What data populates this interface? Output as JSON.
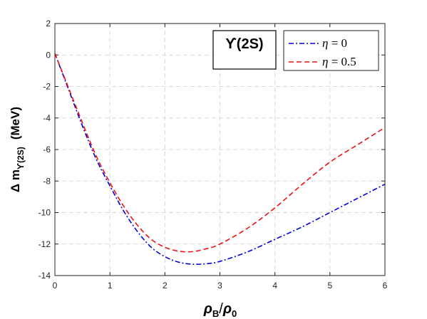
{
  "chart_data": {
    "type": "line",
    "title": "",
    "annotation": "ϒ(2S)",
    "xlabel": {
      "main": "ρ",
      "sub1": "B",
      "slash": "/",
      "main2": "ρ",
      "sub2": "0"
    },
    "ylabel": {
      "prefix": "Δ m",
      "sub": "ϒ(2S)",
      "unit": "(MeV)"
    },
    "xlim": [
      0,
      6
    ],
    "ylim": [
      -14,
      2
    ],
    "xticks": [
      0,
      1,
      2,
      3,
      4,
      5,
      6
    ],
    "yticks": [
      2,
      0,
      -2,
      -4,
      -6,
      -8,
      -10,
      -12,
      -14
    ],
    "grid": true,
    "legend_position": "top-right",
    "series": [
      {
        "name": "η = 0",
        "legend_symbol": "η",
        "legend_rest": " = 0",
        "color": "#0000dd",
        "style": "dash-dot",
        "x": [
          0,
          0.25,
          0.5,
          0.75,
          1,
          1.25,
          1.5,
          1.75,
          2,
          2.25,
          2.5,
          2.75,
          3,
          3.5,
          4,
          4.5,
          5,
          5.5,
          6
        ],
        "y": [
          0.1,
          -2.2,
          -4.5,
          -6.6,
          -8.3,
          -9.9,
          -11.2,
          -12.2,
          -12.8,
          -13.15,
          -13.28,
          -13.25,
          -13.1,
          -12.5,
          -11.7,
          -10.9,
          -10.0,
          -9.1,
          -8.2
        ]
      },
      {
        "name": "η = 0.5",
        "legend_symbol": "η",
        "legend_rest": " = 0.5",
        "color": "#ee1111",
        "style": "dashed",
        "x": [
          0,
          0.25,
          0.5,
          0.75,
          1,
          1.25,
          1.5,
          1.75,
          2,
          2.25,
          2.5,
          2.75,
          3,
          3.5,
          4,
          4.5,
          5,
          5.5,
          6
        ],
        "y": [
          0.1,
          -2.1,
          -4.3,
          -6.4,
          -8.1,
          -9.6,
          -10.8,
          -11.7,
          -12.2,
          -12.45,
          -12.48,
          -12.3,
          -12.0,
          -11.0,
          -9.7,
          -8.2,
          -6.8,
          -5.7,
          -4.6
        ]
      }
    ]
  }
}
